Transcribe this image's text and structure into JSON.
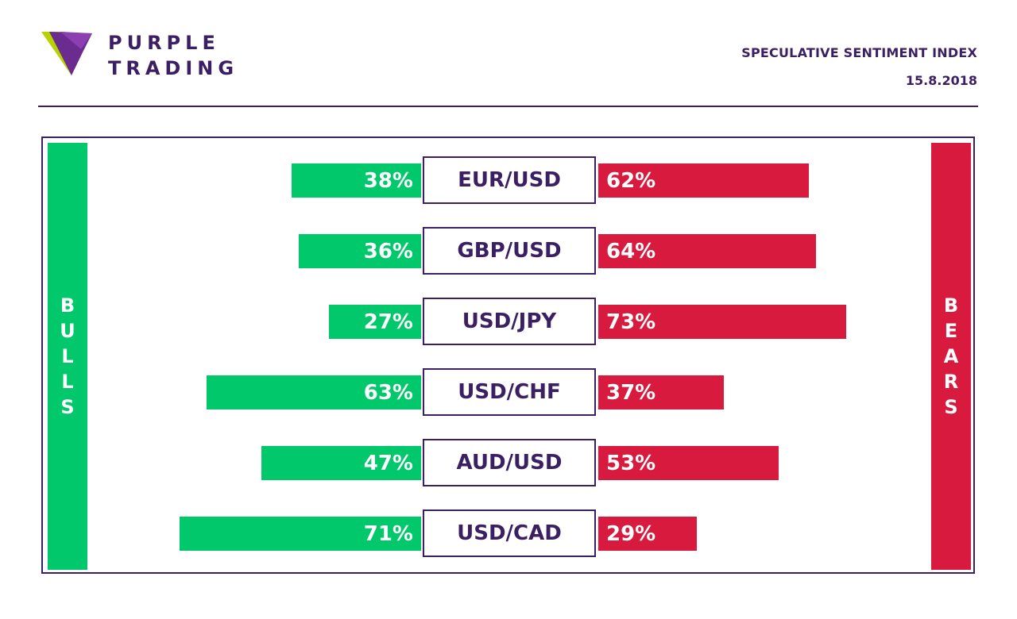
{
  "brand": {
    "line1": "PURPLE",
    "line2": "TRADING"
  },
  "report": {
    "title": "SPECULATIVE SENTIMENT INDEX",
    "date": "15.8.2018"
  },
  "colors": {
    "purple": "#3b1f63",
    "bulls": "#00c86b",
    "bears": "#d81a3e"
  },
  "sides": {
    "bulls": "BULLS",
    "bears": "BEARS"
  },
  "chart_data": {
    "type": "bar",
    "categories": [
      "EUR/USD",
      "GBP/USD",
      "USD/JPY",
      "USD/CHF",
      "AUD/USD",
      "USD/CAD"
    ],
    "series": [
      {
        "name": "BULLS",
        "values": [
          38,
          36,
          27,
          63,
          47,
          71
        ],
        "labels": [
          "38%",
          "36%",
          "27%",
          "63%",
          "47%",
          "71%"
        ]
      },
      {
        "name": "BEARS",
        "values": [
          62,
          64,
          73,
          37,
          53,
          29
        ],
        "labels": [
          "62%",
          "64%",
          "73%",
          "37%",
          "53%",
          "29%"
        ]
      }
    ]
  }
}
